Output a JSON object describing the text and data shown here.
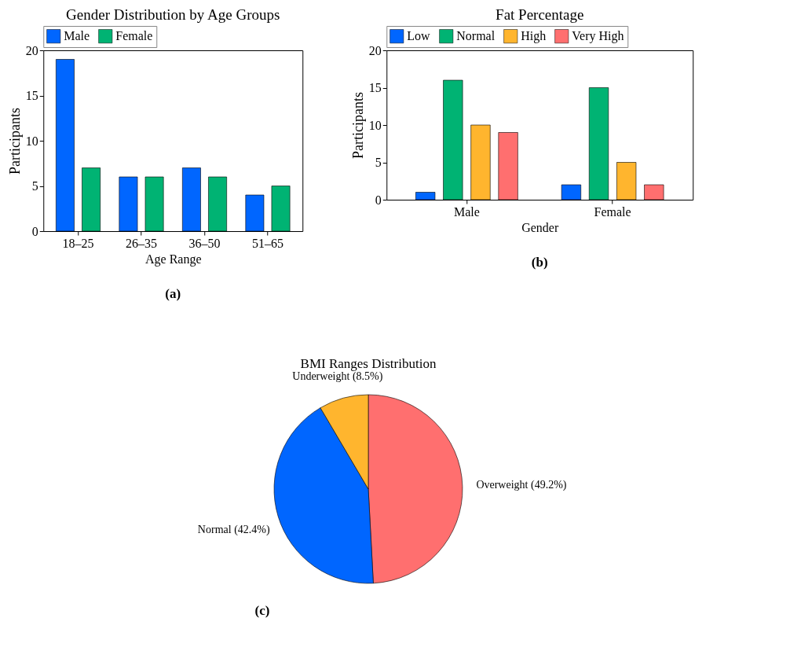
{
  "chart_data": [
    {
      "type": "bar",
      "title": "Gender Distribution by Age Groups",
      "xlabel": "Age Range",
      "ylabel": "Participants",
      "categories": [
        "18–25",
        "26–35",
        "36–50",
        "51–65"
      ],
      "series": [
        {
          "name": "Male",
          "color": "#0066ff",
          "values": [
            19,
            6,
            7,
            4
          ]
        },
        {
          "name": "Female",
          "color": "#00b373",
          "values": [
            7,
            6,
            6,
            5
          ]
        }
      ],
      "ylim": [
        0,
        20
      ],
      "yticks": [
        0,
        5,
        10,
        15,
        20
      ],
      "grid": false,
      "legend": "top",
      "annotations": [
        "(a)"
      ]
    },
    {
      "type": "bar",
      "title": "Fat Percentage",
      "xlabel": "Gender",
      "ylabel": "Participants",
      "categories": [
        "Male",
        "Female"
      ],
      "series": [
        {
          "name": "Low",
          "color": "#0066ff",
          "values": [
            1,
            2
          ]
        },
        {
          "name": "Normal",
          "color": "#00b373",
          "values": [
            16,
            15
          ]
        },
        {
          "name": "High",
          "color": "#ffb52e",
          "values": [
            10,
            5
          ]
        },
        {
          "name": "Very High",
          "color": "#ff6f6f",
          "values": [
            9,
            2
          ]
        }
      ],
      "ylim": [
        0,
        20
      ],
      "yticks": [
        0,
        5,
        10,
        15,
        20
      ],
      "grid": false,
      "legend": "top",
      "annotations": [
        "(b)"
      ]
    },
    {
      "type": "pie",
      "title": "BMI Ranges Distribution",
      "categories": [
        "Overweight (49.2%)",
        "Normal (42.4%)",
        "Underweight (8.5%)"
      ],
      "values": [
        49.2,
        42.4,
        8.5
      ],
      "colors": [
        "#ff6f6f",
        "#0066ff",
        "#ffb52e"
      ],
      "annotations": [
        "(c)"
      ]
    }
  ]
}
